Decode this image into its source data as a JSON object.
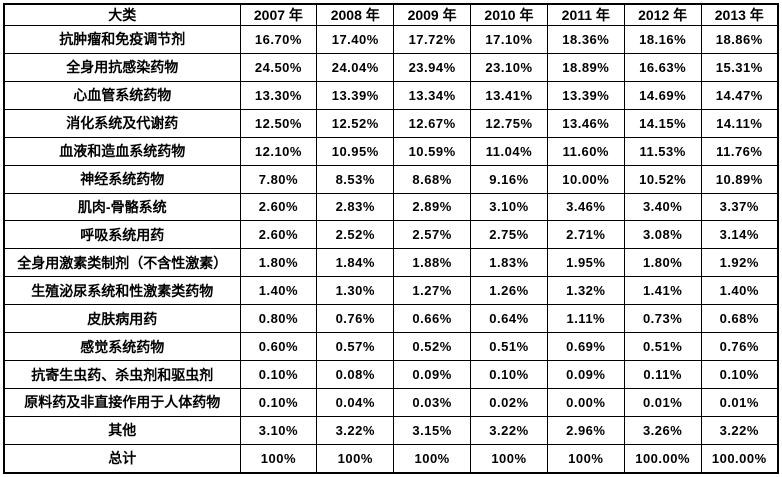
{
  "table": {
    "header": [
      "大类",
      "2007 年",
      "2008 年",
      "2009 年",
      "2010 年",
      "2011 年",
      "2012 年",
      "2013 年"
    ],
    "rows": [
      [
        "抗肿瘤和免疫调节剂",
        "16.70%",
        "17.40%",
        "17.72%",
        "17.10%",
        "18.36%",
        "18.16%",
        "18.86%"
      ],
      [
        "全身用抗感染药物",
        "24.50%",
        "24.04%",
        "23.94%",
        "23.10%",
        "18.89%",
        "16.63%",
        "15.31%"
      ],
      [
        "心血管系统药物",
        "13.30%",
        "13.39%",
        "13.34%",
        "13.41%",
        "13.39%",
        "14.69%",
        "14.47%"
      ],
      [
        "消化系统及代谢药",
        "12.50%",
        "12.52%",
        "12.67%",
        "12.75%",
        "13.46%",
        "14.15%",
        "14.11%"
      ],
      [
        "血液和造血系统药物",
        "12.10%",
        "10.95%",
        "10.59%",
        "11.04%",
        "11.60%",
        "11.53%",
        "11.76%"
      ],
      [
        "神经系统药物",
        "7.80%",
        "8.53%",
        "8.68%",
        "9.16%",
        "10.00%",
        "10.52%",
        "10.89%"
      ],
      [
        "肌肉-骨骼系统",
        "2.60%",
        "2.83%",
        "2.89%",
        "3.10%",
        "3.46%",
        "3.40%",
        "3.37%"
      ],
      [
        "呼吸系统用药",
        "2.60%",
        "2.52%",
        "2.57%",
        "2.75%",
        "2.71%",
        "3.08%",
        "3.14%"
      ],
      [
        "全身用激素类制剂（不含性激素）",
        "1.80%",
        "1.84%",
        "1.88%",
        "1.83%",
        "1.95%",
        "1.80%",
        "1.92%"
      ],
      [
        "生殖泌尿系统和性激素类药物",
        "1.40%",
        "1.30%",
        "1.27%",
        "1.26%",
        "1.32%",
        "1.41%",
        "1.40%"
      ],
      [
        "皮肤病用药",
        "0.80%",
        "0.76%",
        "0.66%",
        "0.64%",
        "1.11%",
        "0.73%",
        "0.68%"
      ],
      [
        "感觉系统药物",
        "0.60%",
        "0.57%",
        "0.52%",
        "0.51%",
        "0.69%",
        "0.51%",
        "0.76%"
      ],
      [
        "抗寄生虫药、杀虫剂和驱虫剂",
        "0.10%",
        "0.08%",
        "0.09%",
        "0.10%",
        "0.09%",
        "0.11%",
        "0.10%"
      ],
      [
        "原料药及非直接作用于人体药物",
        "0.10%",
        "0.04%",
        "0.03%",
        "0.02%",
        "0.00%",
        "0.01%",
        "0.01%"
      ],
      [
        "其他",
        "3.10%",
        "3.22%",
        "3.15%",
        "3.22%",
        "2.96%",
        "3.26%",
        "3.22%"
      ],
      [
        "总计",
        "100%",
        "100%",
        "100%",
        "100%",
        "100%",
        "100.00%",
        "100.00%"
      ]
    ]
  },
  "chart_data": {
    "type": "table",
    "title": "",
    "categories": [
      "2007",
      "2008",
      "2009",
      "2010",
      "2011",
      "2012",
      "2013"
    ],
    "category_column_label": "大类",
    "unit": "percent",
    "series": [
      {
        "name": "抗肿瘤和免疫调节剂",
        "values": [
          16.7,
          17.4,
          17.72,
          17.1,
          18.36,
          18.16,
          18.86
        ]
      },
      {
        "name": "全身用抗感染药物",
        "values": [
          24.5,
          24.04,
          23.94,
          23.1,
          18.89,
          16.63,
          15.31
        ]
      },
      {
        "name": "心血管系统药物",
        "values": [
          13.3,
          13.39,
          13.34,
          13.41,
          13.39,
          14.69,
          14.47
        ]
      },
      {
        "name": "消化系统及代谢药",
        "values": [
          12.5,
          12.52,
          12.67,
          12.75,
          13.46,
          14.15,
          14.11
        ]
      },
      {
        "name": "血液和造血系统药物",
        "values": [
          12.1,
          10.95,
          10.59,
          11.04,
          11.6,
          11.53,
          11.76
        ]
      },
      {
        "name": "神经系统药物",
        "values": [
          7.8,
          8.53,
          8.68,
          9.16,
          10.0,
          10.52,
          10.89
        ]
      },
      {
        "name": "肌肉-骨骼系统",
        "values": [
          2.6,
          2.83,
          2.89,
          3.1,
          3.46,
          3.4,
          3.37
        ]
      },
      {
        "name": "呼吸系统用药",
        "values": [
          2.6,
          2.52,
          2.57,
          2.75,
          2.71,
          3.08,
          3.14
        ]
      },
      {
        "name": "全身用激素类制剂（不含性激素）",
        "values": [
          1.8,
          1.84,
          1.88,
          1.83,
          1.95,
          1.8,
          1.92
        ]
      },
      {
        "name": "生殖泌尿系统和性激素类药物",
        "values": [
          1.4,
          1.3,
          1.27,
          1.26,
          1.32,
          1.41,
          1.4
        ]
      },
      {
        "name": "皮肤病用药",
        "values": [
          0.8,
          0.76,
          0.66,
          0.64,
          1.11,
          0.73,
          0.68
        ]
      },
      {
        "name": "感觉系统药物",
        "values": [
          0.6,
          0.57,
          0.52,
          0.51,
          0.69,
          0.51,
          0.76
        ]
      },
      {
        "name": "抗寄生虫药、杀虫剂和驱虫剂",
        "values": [
          0.1,
          0.08,
          0.09,
          0.1,
          0.09,
          0.11,
          0.1
        ]
      },
      {
        "name": "原料药及非直接作用于人体药物",
        "values": [
          0.1,
          0.04,
          0.03,
          0.02,
          0.0,
          0.01,
          0.01
        ]
      },
      {
        "name": "其他",
        "values": [
          3.1,
          3.22,
          3.15,
          3.22,
          2.96,
          3.26,
          3.22
        ]
      },
      {
        "name": "总计",
        "values": [
          100,
          100,
          100,
          100,
          100,
          100.0,
          100.0
        ]
      }
    ]
  },
  "colors": {
    "border": "#000000",
    "text": "#000000",
    "background": "#ffffff"
  }
}
